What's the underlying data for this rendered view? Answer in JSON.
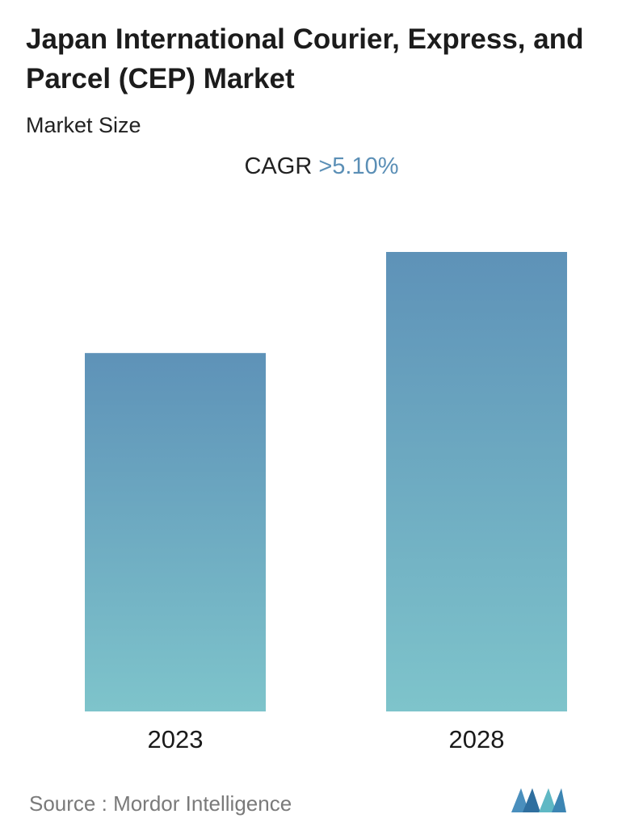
{
  "chart_data": {
    "type": "bar",
    "title": "Japan International Courier, Express, and Parcel (CEP) Market",
    "subtitle": "Market Size",
    "categories": [
      "2023",
      "2028"
    ],
    "values": [
      0.78,
      1.0
    ],
    "cagr_label": "CAGR",
    "cagr_value": ">5.10%",
    "ylim": [
      0,
      1.0
    ],
    "grid": false,
    "colors": {
      "bar_top": "#5e92b8",
      "bar_bottom": "#7ec4cb",
      "accent": "#5b8fb6"
    }
  },
  "source": {
    "label": "Source :",
    "name": "Mordor Intelligence"
  },
  "logo_icon": "mordor-intelligence-logo-icon"
}
